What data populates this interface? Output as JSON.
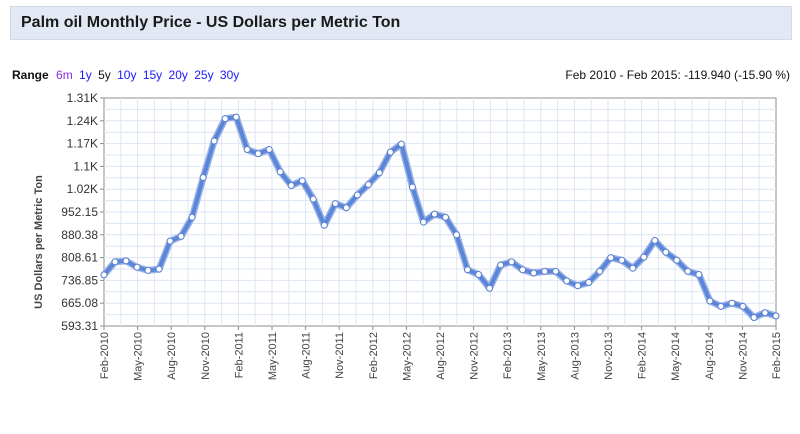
{
  "title": "Palm oil Monthly Price - US Dollars per Metric Ton",
  "range": {
    "label": "Range",
    "options": [
      {
        "label": "6m",
        "color": "#8a2be2"
      },
      {
        "label": "1y",
        "color": "#1a1aff"
      },
      {
        "label": "5y",
        "color": "#111111",
        "selected": true
      },
      {
        "label": "10y",
        "color": "#1a1aff"
      },
      {
        "label": "15y",
        "color": "#1a1aff"
      },
      {
        "label": "20y",
        "color": "#1a1aff"
      },
      {
        "label": "25y",
        "color": "#1a1aff"
      },
      {
        "label": "30y",
        "color": "#1a1aff"
      }
    ],
    "summary": "Feb 2010 - Feb 2015: -119.940 (-15.90 %)"
  },
  "chart_data": {
    "type": "line",
    "ylabel": "US Dollars per Metric Ton",
    "ylim": [
      593.31,
      1310
    ],
    "y_ticks": [
      "1.31K",
      "1.24K",
      "1.17K",
      "1.1K",
      "1.02K",
      "952.15",
      "880.38",
      "808.61",
      "736.85",
      "665.08",
      "593.31"
    ],
    "y_tick_values": [
      1310,
      1240,
      1170,
      1100,
      1020,
      952.15,
      880.38,
      808.61,
      736.85,
      665.08,
      593.31
    ],
    "x_ticks": [
      "Feb-2010",
      "May-2010",
      "Aug-2010",
      "Nov-2010",
      "Feb-2011",
      "May-2011",
      "Aug-2011",
      "Nov-2011",
      "Feb-2012",
      "May-2012",
      "Aug-2012",
      "Nov-2012",
      "Feb-2013",
      "May-2013",
      "Aug-2013",
      "Nov-2013",
      "Feb-2014",
      "May-2014",
      "Aug-2014",
      "Nov-2014",
      "Feb-2015"
    ],
    "grid": true,
    "line_color": "#5b85d9",
    "series": [
      {
        "values": [
          754,
          795,
          798,
          778,
          768,
          772,
          860,
          875,
          935,
          1060,
          1175,
          1245,
          1250,
          1148,
          1135,
          1148,
          1078,
          1035,
          1050,
          992,
          910,
          978,
          965,
          1005,
          1038,
          1075,
          1140,
          1165,
          1030,
          920,
          945,
          935,
          880,
          770,
          755,
          712,
          785,
          795,
          770,
          760,
          765,
          765,
          735,
          720,
          730,
          765,
          808,
          800,
          775,
          810,
          862,
          825,
          800,
          765,
          755,
          672,
          655,
          665,
          655,
          620,
          635,
          625
        ]
      }
    ]
  }
}
